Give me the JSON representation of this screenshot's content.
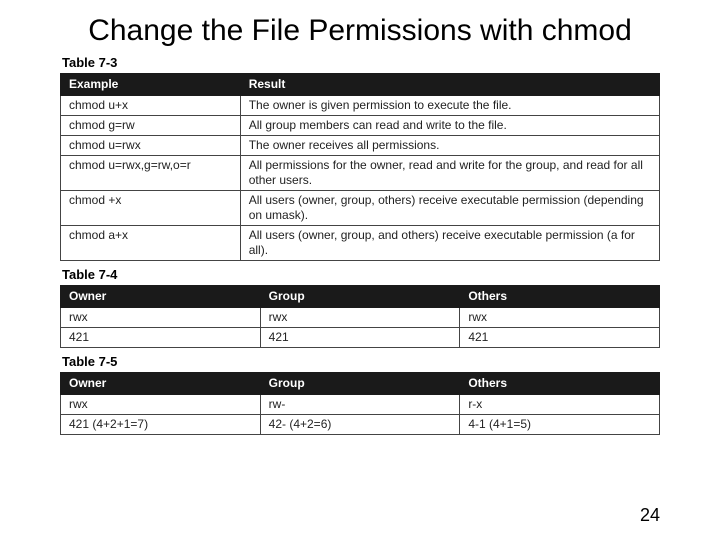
{
  "title": "Change the File Permissions with chmod",
  "pageNumber": "24",
  "table73": {
    "label": "Table 7-3",
    "headers": [
      "Example",
      "Result"
    ],
    "rows": [
      [
        "chmod u+x",
        "The owner is given permission to execute the file."
      ],
      [
        "chmod g=rw",
        "All group members can read and write to the file."
      ],
      [
        "chmod u=rwx",
        "The owner receives all permissions."
      ],
      [
        "chmod u=rwx,g=rw,o=r",
        "All permissions for the owner, read and write for the group, and read for all other users."
      ],
      [
        "chmod +x",
        "All users (owner, group, others) receive executable permission (depending on umask)."
      ],
      [
        "chmod a+x",
        "All users (owner, group, and others) receive executable permission (a for all)."
      ]
    ]
  },
  "table74": {
    "label": "Table 7-4",
    "headers": [
      "Owner",
      "Group",
      "Others"
    ],
    "rows": [
      [
        "rwx",
        "rwx",
        "rwx"
      ],
      [
        "421",
        "421",
        "421"
      ]
    ]
  },
  "table75": {
    "label": "Table 7-5",
    "headers": [
      "Owner",
      "Group",
      "Others"
    ],
    "rows": [
      [
        "rwx",
        "rw-",
        "r-x"
      ],
      [
        "421 (4+2+1=7)",
        "42- (4+2=6)",
        "4-1 (4+1=5)"
      ]
    ]
  }
}
